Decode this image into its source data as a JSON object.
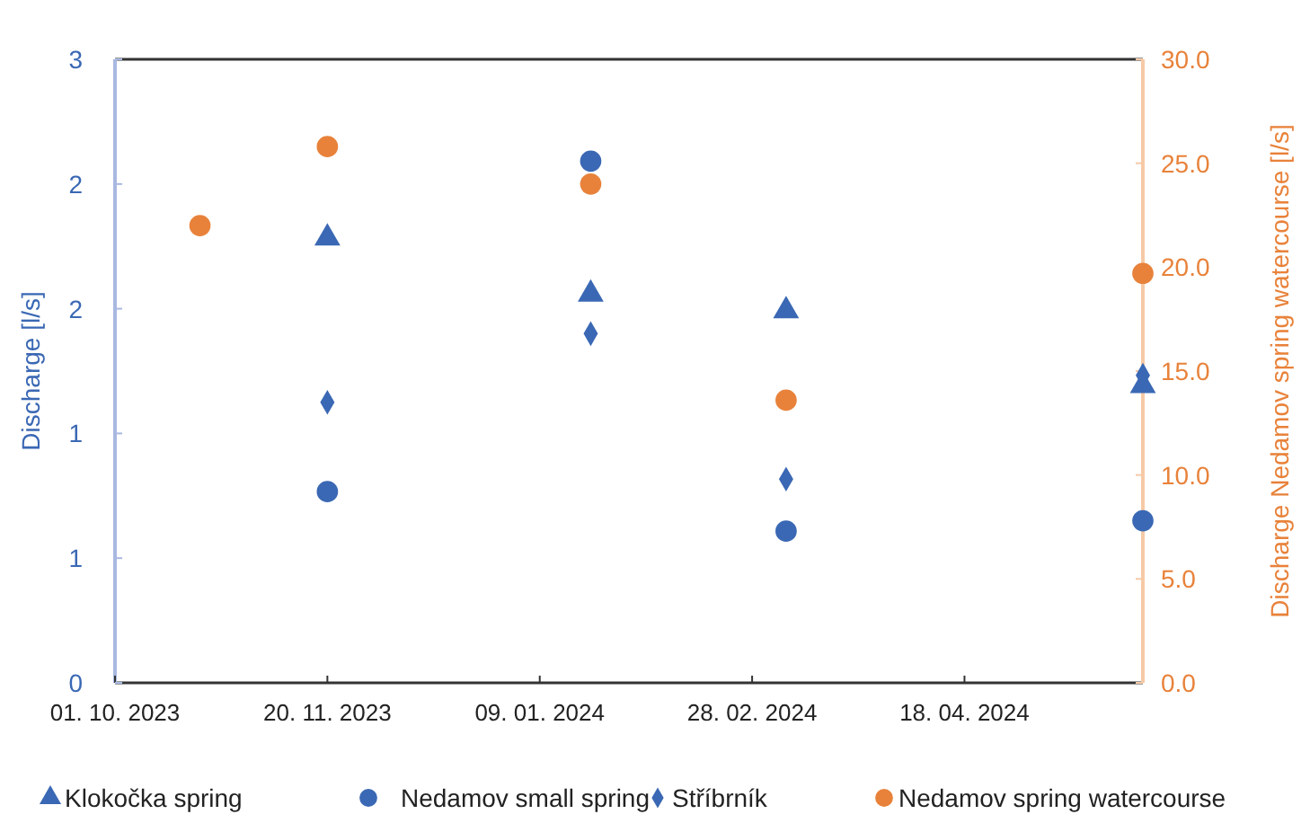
{
  "chart_data": {
    "type": "scatter",
    "xlabel": null,
    "ylabel": "Discharge [l/s]",
    "y2label": "Discharge Nedamov spring watercourse [l/s]",
    "xlim": [
      "2023-10-01",
      "2024-05-30"
    ],
    "xticks": [
      {
        "value": "2023-10-01",
        "label": "01. 10. 2023"
      },
      {
        "value": "2023-11-20",
        "label": "20. 11. 2023"
      },
      {
        "value": "2024-01-09",
        "label": "09. 01. 2024"
      },
      {
        "value": "2024-02-28",
        "label": "28. 02. 2024"
      },
      {
        "value": "2024-04-18",
        "label": "18. 04. 2024"
      }
    ],
    "ylim": [
      0,
      3
    ],
    "yticks": [
      0,
      {
        "value": 0.6,
        "label": "1"
      },
      {
        "value": 1.2,
        "label": "1"
      },
      {
        "value": 1.8,
        "label": "2"
      },
      {
        "value": 2.4,
        "label": "2"
      },
      3
    ],
    "y2lim": [
      0,
      30
    ],
    "y2ticks": [
      {
        "value": 0,
        "label": "0.0"
      },
      {
        "value": 5,
        "label": "5.0"
      },
      {
        "value": 10,
        "label": "10.0"
      },
      {
        "value": 15,
        "label": "15.0"
      },
      {
        "value": 20,
        "label": "20.0"
      },
      {
        "value": 25,
        "label": "25.0"
      },
      {
        "value": 30,
        "label": "30.0"
      }
    ],
    "legend": "bottom",
    "grid": false,
    "series": [
      {
        "name": "Klokočka spring",
        "color": "#3a68b4",
        "marker": "triangle",
        "x": [
          "2023-11-20",
          "2024-01-21",
          "2024-03-07",
          "2024-05-30"
        ],
        "values": [
          2.14,
          1.87,
          1.79,
          1.43
        ]
      },
      {
        "name": "Nedamov small spring",
        "color": "#3a68b4",
        "marker": "circle",
        "x": [
          "2023-11-20",
          "2024-01-21",
          "2024-03-07",
          "2024-05-30"
        ],
        "values": [
          0.92,
          2.51,
          0.73,
          0.78
        ]
      },
      {
        "name": "Stříbrník",
        "color": "#3a68b4",
        "marker": "diamond",
        "x": [
          "2023-11-20",
          "2024-01-21",
          "2024-03-07",
          "2024-05-30"
        ],
        "values": [
          1.35,
          1.68,
          0.98,
          1.48
        ]
      },
      {
        "name": "Nedamov spring watercourse",
        "color": "#e8823a",
        "marker": "circle",
        "axis": "y2",
        "x": [
          "2023-10-21",
          "2023-11-20",
          "2024-01-21",
          "2024-03-07",
          "2024-05-30"
        ],
        "values": [
          22.0,
          25.8,
          24.0,
          13.6,
          19.7
        ]
      }
    ]
  }
}
